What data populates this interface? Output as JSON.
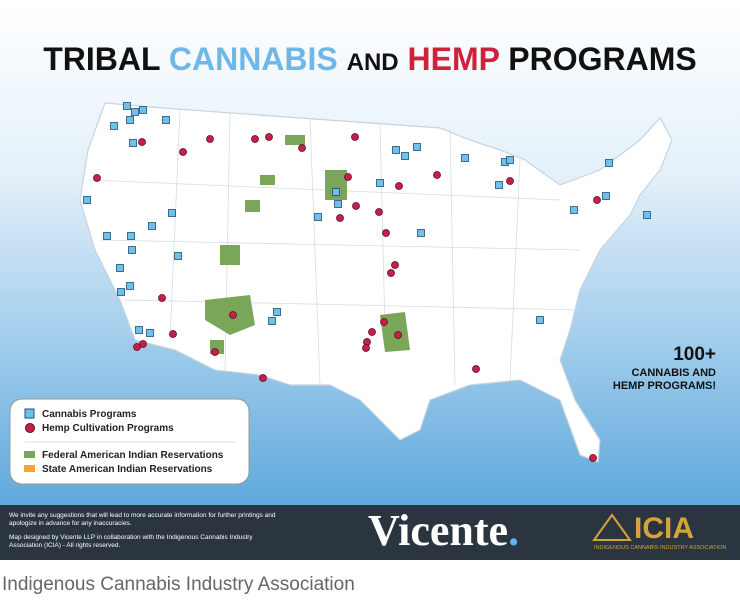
{
  "title": {
    "part1": "TRIBAL",
    "part2": "CANNABIS",
    "part3": "AND",
    "part4": "HEMP",
    "part5": "PROGRAMS"
  },
  "callout": {
    "number": "100+",
    "line1": "CANNABIS AND",
    "line2": "HEMP PROGRAMS!"
  },
  "legend": {
    "items": [
      "Cannabis Programs",
      "Hemp Cultivation Programs",
      "Federal American Indian Reservations",
      "State American Indian Reservations"
    ]
  },
  "footer": {
    "disclaimer": "We invite any suggestions that will lead to more accurate information for further printings and apologize in advance for any inaccuracies.",
    "credit": "Map designed by Vicente LLP in collaboration with the Indigenous Cannabis Industry Association (ICIA) - All rights reserved.",
    "vicente": "Vicente",
    "vicente_dot": ".",
    "icia": "ICIA",
    "icia_sub": "INDIGENOUS CANNABIS INDUSTRY ASSOCIATION"
  },
  "caption": "Indigenous Cannabis Industry Association"
}
